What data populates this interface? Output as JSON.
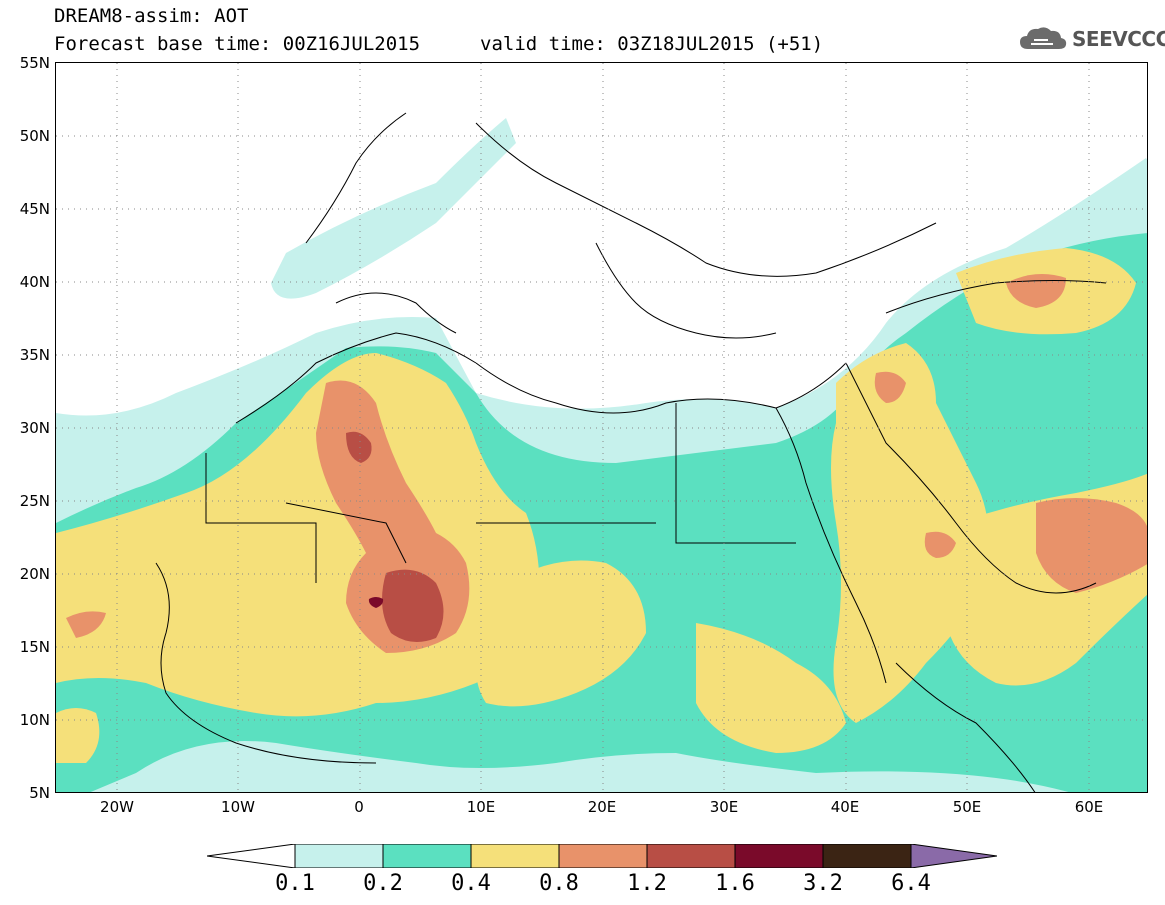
{
  "header": {
    "title": "DREAM8-assim: AOT",
    "base_time": "Forecast base time: 00Z16JUL2015",
    "valid_time": "valid time: 03Z18JUL2015 (+51)",
    "logo_text": "SEEVCCC"
  },
  "map": {
    "lat_labels": [
      "55N",
      "50N",
      "45N",
      "40N",
      "35N",
      "30N",
      "25N",
      "20N",
      "15N",
      "10N",
      "5N"
    ],
    "lon_labels": [
      "20W",
      "10W",
      "0",
      "10E",
      "20E",
      "30E",
      "40E",
      "50E",
      "60E"
    ]
  },
  "legend": {
    "labels": [
      "0.1",
      "0.2",
      "0.4",
      "0.8",
      "1.2",
      "1.6",
      "3.2",
      "6.4"
    ],
    "colors": [
      "#ffffff",
      "#c6f1ec",
      "#5be0c0",
      "#f5e07a",
      "#e8926a",
      "#b84e45",
      "#7a0a2a",
      "#3b2414",
      "#8a6aa8"
    ]
  },
  "colors": {
    "very_low": "#c6f1ec",
    "low": "#5be0c0",
    "medium": "#f5e07a",
    "high": "#e8926a",
    "very_high": "#b84e45",
    "extreme": "#7a0a2a"
  }
}
